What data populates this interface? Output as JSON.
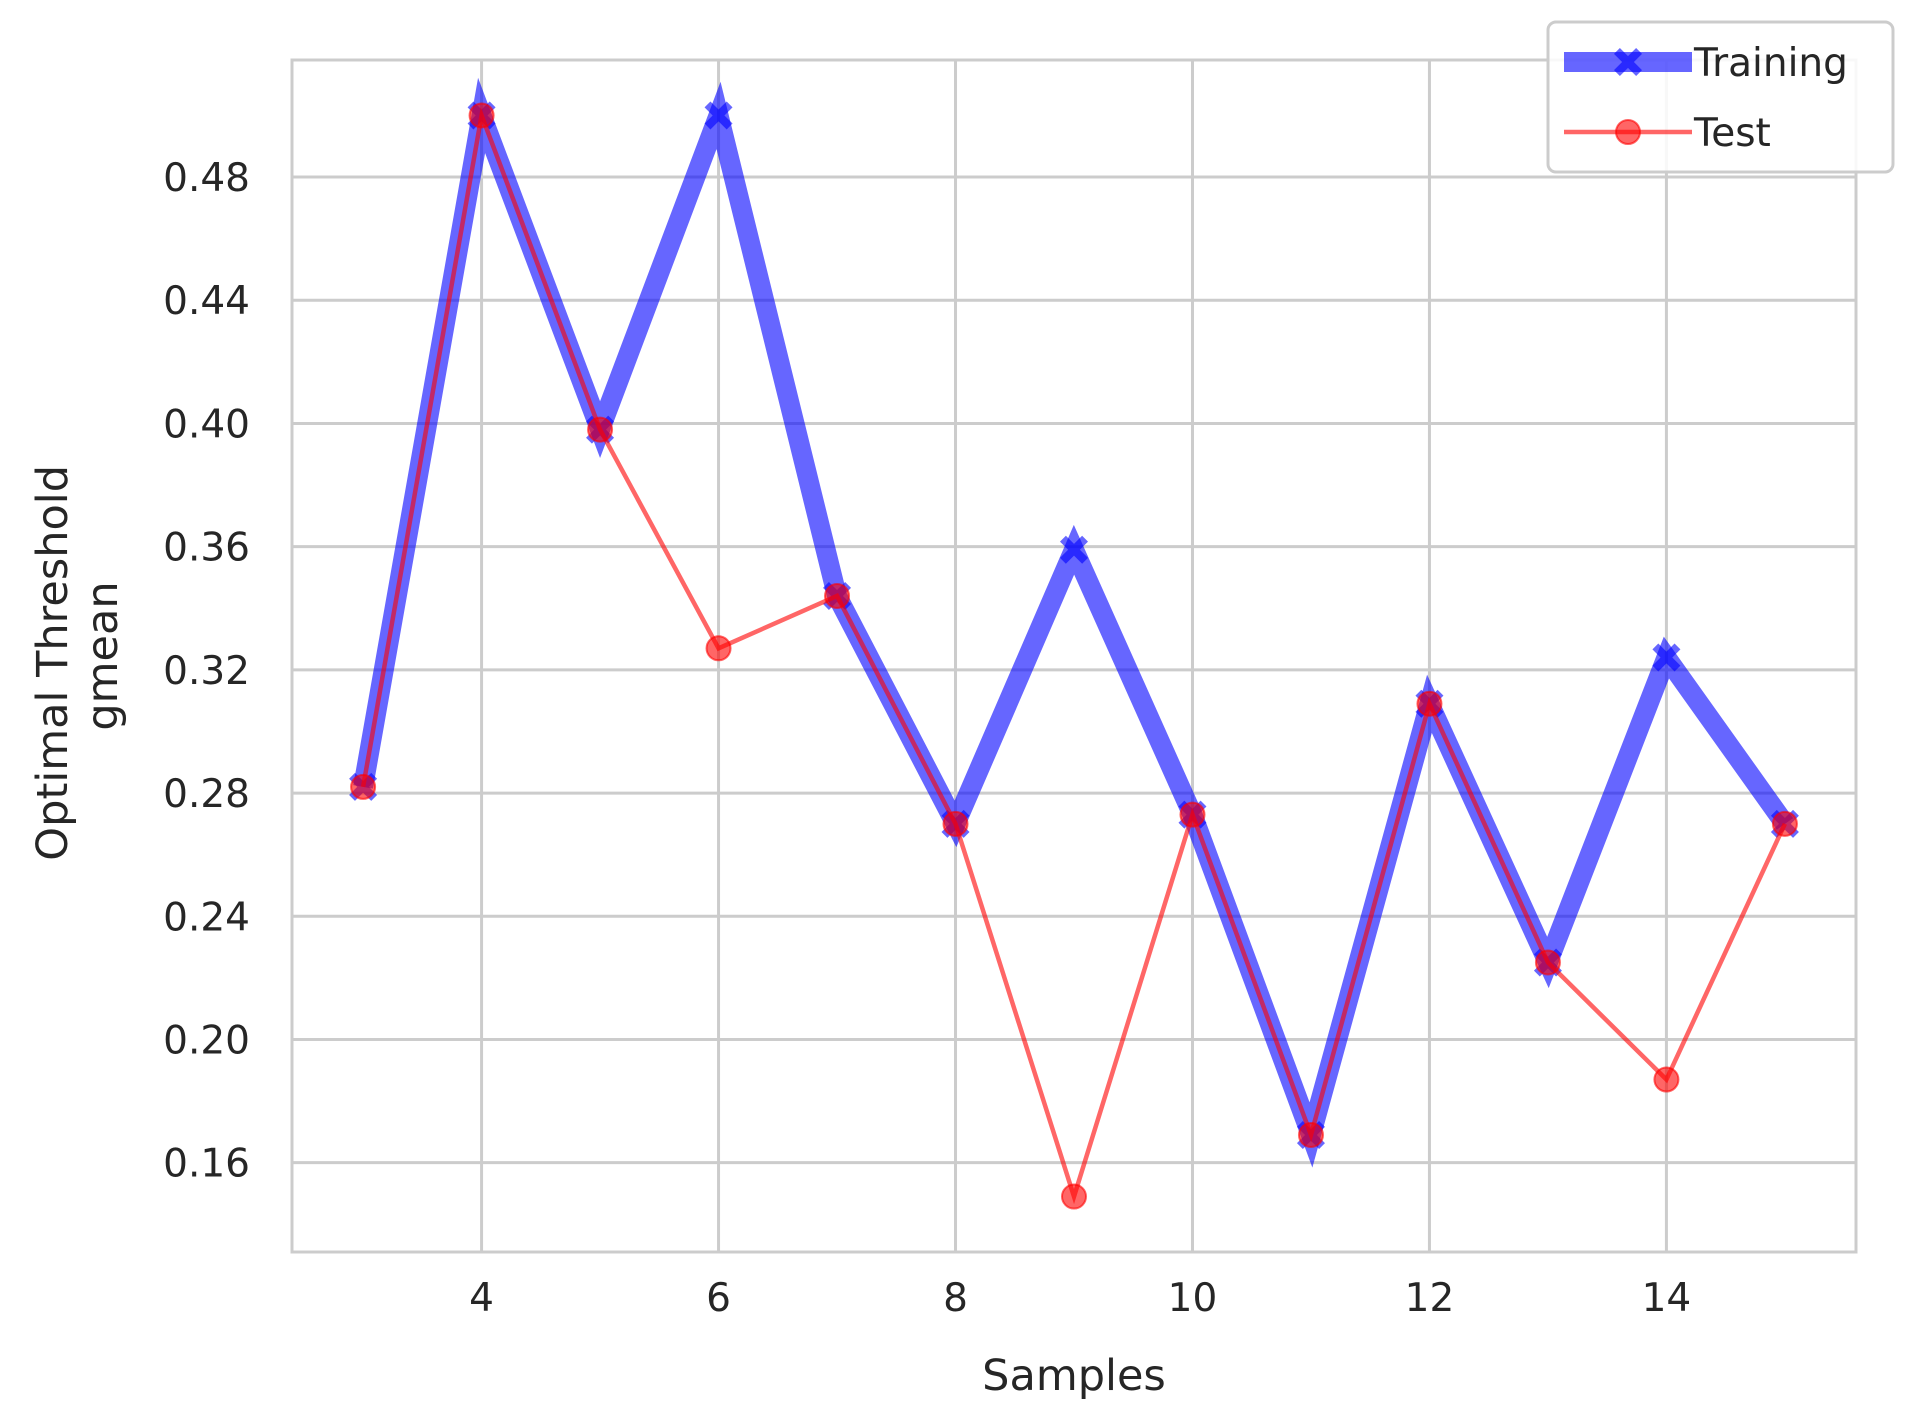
{
  "chart_data": {
    "type": "line",
    "title": "",
    "xlabel": "Samples",
    "ylabel_lines": [
      "Optimal Threshold",
      "gmean"
    ],
    "x": [
      3,
      4,
      5,
      6,
      7,
      8,
      9,
      10,
      11,
      12,
      13,
      14,
      15
    ],
    "xlim": [
      2.4,
      15.6
    ],
    "ylim": [
      0.131,
      0.518
    ],
    "xticks": [
      4,
      6,
      8,
      10,
      12,
      14
    ],
    "yticks": [
      0.16,
      0.2,
      0.24,
      0.28,
      0.32,
      0.36,
      0.4,
      0.44,
      0.48
    ],
    "grid": true,
    "legend_position": "top-right",
    "series": [
      {
        "name": "Training",
        "color": "#0000ff",
        "marker": "X",
        "values": [
          0.282,
          0.5,
          0.398,
          0.5,
          0.344,
          0.27,
          0.359,
          0.273,
          0.169,
          0.309,
          0.225,
          0.324,
          0.27
        ]
      },
      {
        "name": "Test",
        "color": "#ff0000",
        "marker": "o",
        "values": [
          0.282,
          0.5,
          0.398,
          0.327,
          0.344,
          0.27,
          0.149,
          0.273,
          0.169,
          0.309,
          0.225,
          0.187,
          0.27
        ]
      }
    ]
  }
}
